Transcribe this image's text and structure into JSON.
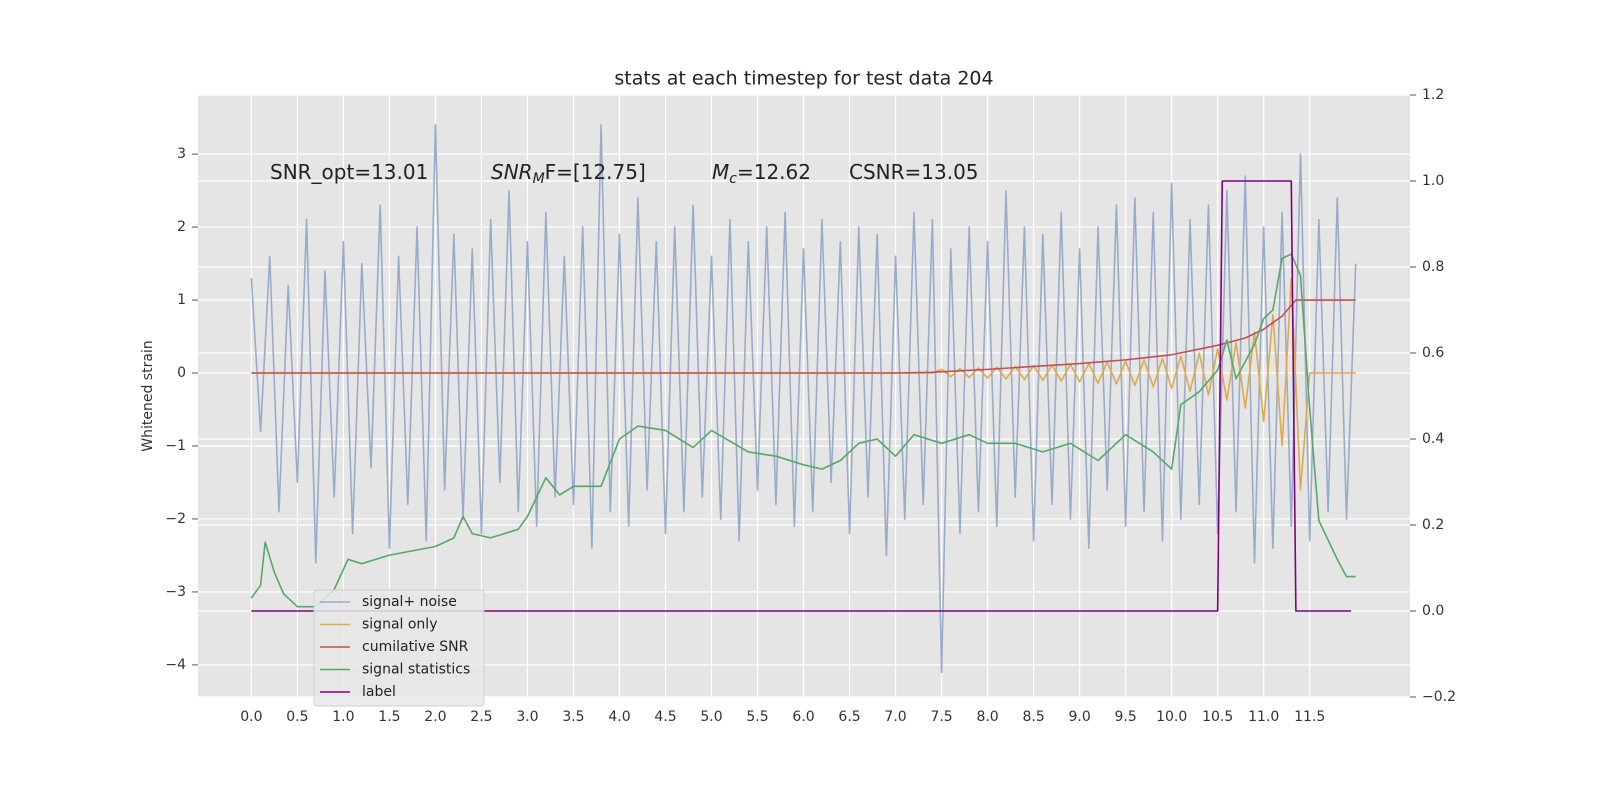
{
  "chart_data": {
    "type": "line",
    "title": "stats at each timestep for test data 204",
    "y_label": "Whitened strain",
    "annotations": [
      {
        "text": "SNR_opt=13.01"
      },
      {
        "main": "SNR",
        "sub": "M",
        "tail": "F=[12.75]"
      },
      {
        "main": "M",
        "sub": "c",
        "tail": "=12.62"
      },
      {
        "text": "CSNR=13.05"
      }
    ],
    "grid": true,
    "legend": "lower left",
    "xlim": [
      -0.58,
      12.59
    ],
    "ylim": [
      -4.44,
      3.81
    ],
    "y2lim": [
      -0.2,
      1.2
    ],
    "xticks": [
      {
        "value": 0,
        "label": "0.0"
      },
      0.5,
      {
        "value": 1,
        "label": "1.0"
      },
      1.5,
      {
        "value": 2,
        "label": "2.0"
      },
      2.5,
      {
        "value": 3,
        "label": "3.0"
      },
      3.5,
      {
        "value": 4,
        "label": "4.0"
      },
      4.5,
      {
        "value": 5,
        "label": "5.0"
      },
      5.5,
      {
        "value": 6,
        "label": "6.0"
      },
      6.5,
      {
        "value": 7,
        "label": "7.0"
      },
      7.5,
      {
        "value": 8,
        "label": "8.0"
      },
      8.5,
      {
        "value": 9,
        "label": "9.0"
      },
      9.5,
      {
        "value": 10,
        "label": "10.0"
      },
      10.5,
      {
        "value": 11,
        "label": "11.0"
      },
      11.5
    ],
    "yticks": [
      {
        "value": -4,
        "label": "−4"
      },
      {
        "value": -3,
        "label": "−3"
      },
      {
        "value": -2,
        "label": "−2"
      },
      {
        "value": -1,
        "label": "−1"
      },
      0,
      1,
      2,
      3
    ],
    "y2ticks": [
      {
        "value": -0.2,
        "label": "−0.2"
      },
      {
        "value": 0,
        "label": "0.0"
      },
      0.2,
      0.4,
      0.6,
      0.8,
      {
        "value": 1,
        "label": "1.0"
      },
      1.2
    ],
    "x": [
      0,
      0.1,
      0.2,
      0.3,
      0.4,
      0.5,
      0.6,
      0.7,
      0.8,
      0.9,
      1,
      1.1,
      1.2,
      1.3,
      1.4,
      1.5,
      1.6,
      1.7,
      1.8,
      1.9,
      2,
      2.1,
      2.2,
      2.3,
      2.4,
      2.5,
      2.6,
      2.7,
      2.8,
      2.9,
      3,
      3.1,
      3.2,
      3.3,
      3.4,
      3.5,
      3.6,
      3.7,
      3.8,
      3.9,
      4,
      4.1,
      4.2,
      4.3,
      4.4,
      4.5,
      4.6,
      4.7,
      4.8,
      4.9,
      5,
      5.1,
      5.2,
      5.3,
      5.4,
      5.5,
      5.6,
      5.7,
      5.8,
      5.9,
      6,
      6.1,
      6.2,
      6.3,
      6.4,
      6.5,
      6.6,
      6.7,
      6.8,
      6.9,
      7,
      7.1,
      7.2,
      7.3,
      7.4,
      7.5,
      7.6,
      7.7,
      7.8,
      7.9,
      8,
      8.1,
      8.2,
      8.3,
      8.4,
      8.5,
      8.6,
      8.7,
      8.8,
      8.9,
      9,
      9.1,
      9.2,
      9.3,
      9.4,
      9.5,
      9.6,
      9.7,
      9.8,
      9.9,
      10,
      10.1,
      10.2,
      10.3,
      10.4,
      10.5,
      10.6,
      10.7,
      10.8,
      10.9,
      11,
      11.1,
      11.2,
      11.3,
      11.4,
      11.5,
      11.6,
      11.7,
      11.8,
      11.9,
      12
    ],
    "series": [
      {
        "name": "signal+ noise",
        "color": "#9aabca",
        "values": [
          1.3,
          -0.8,
          1.6,
          -1.9,
          1.2,
          -1.5,
          2.1,
          -2.6,
          1.4,
          -1.7,
          1.8,
          -2.2,
          1.5,
          -1.3,
          2.3,
          -2.4,
          1.6,
          -1.8,
          2.0,
          -2.3,
          3.4,
          -1.6,
          1.9,
          -2.0,
          1.7,
          -2.2,
          2.1,
          -1.5,
          2.5,
          -1.9,
          1.8,
          -2.1,
          2.2,
          -1.7,
          1.6,
          -1.8,
          2.0,
          -2.4,
          3.4,
          -1.9,
          1.9,
          -2.1,
          2.4,
          -1.6,
          1.8,
          -2.2,
          2.0,
          -1.9,
          2.3,
          -1.7,
          1.6,
          -2.0,
          2.1,
          -2.3,
          1.8,
          -1.6,
          2.0,
          -1.8,
          2.2,
          -2.1,
          1.7,
          -1.9,
          2.1,
          -1.5,
          1.8,
          -2.2,
          2.0,
          -1.7,
          1.9,
          -2.5,
          1.6,
          -2.0,
          2.2,
          -1.8,
          2.1,
          -4.1,
          1.7,
          -2.2,
          2.0,
          -1.9,
          1.8,
          -2.1,
          2.5,
          -1.7,
          2.0,
          -2.3,
          1.9,
          -1.8,
          2.2,
          -2.0,
          1.7,
          -2.4,
          2.0,
          -1.6,
          2.3,
          -2.1,
          2.4,
          -1.9,
          2.2,
          -2.3,
          2.6,
          -2.0,
          2.1,
          -1.8,
          2.3,
          -2.2,
          2.5,
          -1.9,
          2.7,
          -2.6,
          2.0,
          -2.4,
          2.2,
          -2.1,
          3.0,
          -2.3,
          2.1,
          -1.9,
          2.4,
          -2.0,
          1.5
        ]
      },
      {
        "name": "signal only",
        "color": "#e0aa4c",
        "values": [
          0,
          0,
          0,
          0,
          0,
          0,
          0,
          0,
          0,
          0,
          0,
          0,
          0,
          0,
          0,
          0,
          0,
          0,
          0,
          0,
          0,
          0,
          0,
          0,
          0,
          0,
          0,
          0,
          0,
          0,
          0,
          0,
          0,
          0,
          0,
          0,
          0,
          0,
          0,
          0,
          0,
          0,
          0,
          0,
          0,
          0,
          0,
          0,
          0,
          0,
          0,
          0,
          0,
          0,
          0,
          0,
          0,
          0,
          0,
          0,
          0,
          0,
          0,
          0,
          0,
          0,
          0,
          0,
          0,
          0,
          0,
          0,
          0,
          0,
          0,
          0.05,
          -0.05,
          0.06,
          -0.06,
          0.07,
          -0.07,
          0.08,
          -0.08,
          0.09,
          -0.09,
          0.1,
          -0.1,
          0.11,
          -0.11,
          0.12,
          -0.12,
          0.13,
          -0.14,
          0.15,
          -0.15,
          0.16,
          -0.17,
          0.18,
          -0.19,
          0.2,
          -0.21,
          0.23,
          -0.25,
          0.27,
          -0.3,
          0.33,
          -0.37,
          0.42,
          -0.48,
          0.56,
          -0.66,
          0.8,
          -1.0,
          1.3,
          -1.6,
          0,
          0,
          0,
          0,
          0,
          0
        ]
      },
      {
        "name": "cumilative SNR",
        "color": "#c44e52",
        "x": [
          0,
          1,
          2,
          3,
          4,
          5,
          6,
          7,
          7.4,
          8,
          8.5,
          9,
          9.5,
          10,
          10.5,
          10.8,
          11,
          11.2,
          11.35,
          11.5,
          12
        ],
        "values": [
          0,
          0,
          0,
          0,
          0,
          0,
          0,
          0,
          0.01,
          0.05,
          0.09,
          0.13,
          0.18,
          0.25,
          0.38,
          0.48,
          0.6,
          0.78,
          1.0,
          1.0,
          1.0
        ]
      },
      {
        "name": "signal statistics",
        "color": "#55a868",
        "axis": "y2",
        "x": [
          0,
          0.1,
          0.15,
          0.25,
          0.35,
          0.5,
          0.7,
          0.9,
          1.05,
          1.2,
          1.5,
          2.0,
          2.2,
          2.3,
          2.4,
          2.6,
          2.9,
          3.0,
          3.2,
          3.35,
          3.5,
          3.8,
          4.0,
          4.2,
          4.5,
          4.8,
          5.0,
          5.4,
          5.7,
          6.0,
          6.2,
          6.4,
          6.6,
          6.8,
          7.0,
          7.2,
          7.5,
          7.8,
          8.0,
          8.3,
          8.6,
          8.9,
          9.2,
          9.5,
          9.8,
          10.0,
          10.1,
          10.3,
          10.5,
          10.6,
          10.7,
          10.9,
          11.0,
          11.1,
          11.2,
          11.3,
          11.4,
          11.5,
          11.6,
          11.8,
          11.9,
          12.0
        ],
        "values": [
          0.03,
          0.06,
          0.16,
          0.09,
          0.04,
          0.01,
          0.01,
          0.05,
          0.12,
          0.11,
          0.13,
          0.15,
          0.17,
          0.22,
          0.18,
          0.17,
          0.19,
          0.22,
          0.31,
          0.27,
          0.29,
          0.29,
          0.4,
          0.43,
          0.42,
          0.38,
          0.42,
          0.37,
          0.36,
          0.34,
          0.33,
          0.35,
          0.39,
          0.4,
          0.36,
          0.41,
          0.39,
          0.41,
          0.39,
          0.39,
          0.37,
          0.39,
          0.35,
          0.41,
          0.37,
          0.33,
          0.48,
          0.51,
          0.56,
          0.63,
          0.54,
          0.62,
          0.68,
          0.7,
          0.82,
          0.83,
          0.78,
          0.47,
          0.21,
          0.12,
          0.08,
          0.08
        ]
      },
      {
        "name": "label",
        "color": "#800080",
        "axis": "y2",
        "x": [
          0,
          10.5,
          10.55,
          11.3,
          11.35,
          11.95
        ],
        "values": [
          0,
          0,
          1,
          1,
          0,
          0
        ]
      }
    ]
  }
}
